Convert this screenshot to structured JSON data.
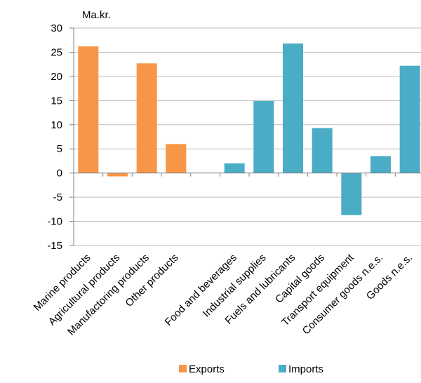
{
  "chart_data": {
    "type": "bar",
    "ylabel": "Ma.kr.",
    "ylim": [
      -15,
      30
    ],
    "ytick_step": 5,
    "grid": true,
    "legend_position": "bottom",
    "categories": [
      "Marine products",
      "Agricultural products",
      "Manufactoring products",
      "Other products",
      "",
      "Food and beverages",
      "Industrial supplies",
      "Fuels and lubricants",
      "Capital goods",
      "Transport equipment",
      "Consumer goods n.e.s.",
      "Goods n.e.s."
    ],
    "series": [
      {
        "name": "Exports",
        "color": "#F79646",
        "values": [
          26.2,
          -0.7,
          22.7,
          6.0,
          null,
          null,
          null,
          null,
          null,
          null,
          null,
          null
        ]
      },
      {
        "name": "Imports",
        "color": "#4BACC6",
        "values": [
          null,
          null,
          null,
          null,
          null,
          2.0,
          14.9,
          26.8,
          9.3,
          -8.7,
          3.5,
          22.2
        ]
      }
    ]
  }
}
